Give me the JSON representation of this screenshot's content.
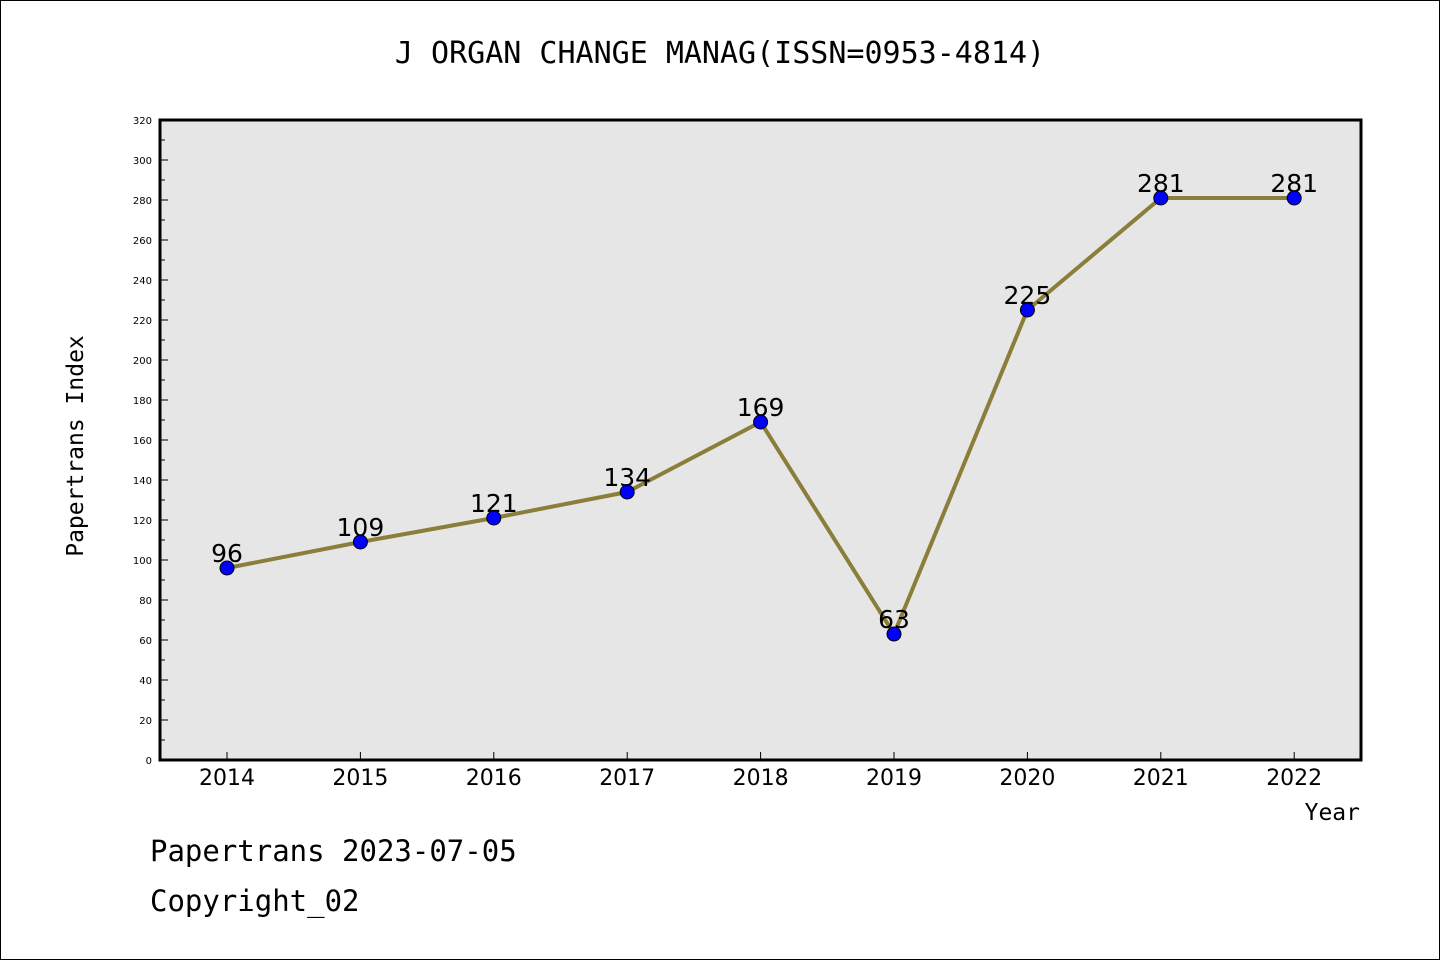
{
  "title": "J ORGAN CHANGE MANAG(ISSN=0953-4814)",
  "footer": {
    "line1": "Papertrans 2023-07-05",
    "line2": "Copyright_02"
  },
  "chart_data": {
    "type": "line",
    "title": "J ORGAN CHANGE MANAG(ISSN=0953-4814)",
    "xlabel": "Year",
    "ylabel": "Papertrans Index",
    "categories": [
      "2014",
      "2015",
      "2016",
      "2017",
      "2018",
      "2019",
      "2020",
      "2021",
      "2022"
    ],
    "series": [
      {
        "values": [
          96,
          109,
          121,
          134,
          169,
          63,
          225,
          281,
          281
        ]
      }
    ],
    "ylim": [
      0,
      320
    ],
    "yticks": [
      0,
      20,
      40,
      60,
      80,
      100,
      120,
      140,
      160,
      180,
      200,
      220,
      240,
      260,
      280,
      300,
      320
    ],
    "grid": false,
    "colors": {
      "line": "#8b7d3a",
      "marker": "#0000ff",
      "plot_background": "#e6e6e6"
    }
  }
}
